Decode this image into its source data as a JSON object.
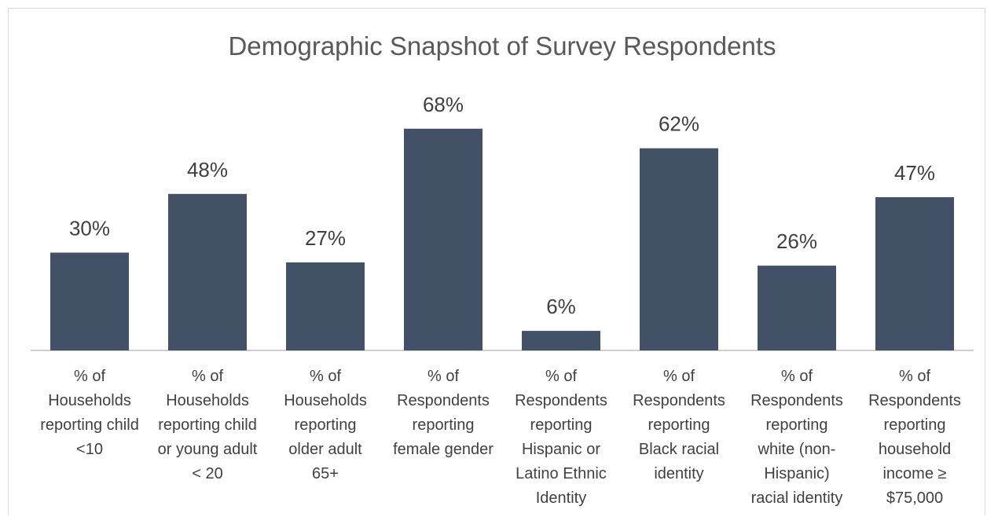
{
  "chart_data": {
    "type": "bar",
    "title": "Demographic Snapshot of Survey Respondents",
    "xlabel": "",
    "ylabel": "",
    "ylim": [
      0,
      80
    ],
    "grid": false,
    "legend": "none",
    "bar_color": "#435167",
    "categories": [
      [
        "% of",
        "Households",
        "reporting child",
        "<10"
      ],
      [
        "% of",
        "Households",
        "reporting child",
        "or young adult",
        "< 20"
      ],
      [
        "% of",
        "Households",
        "reporting",
        "older adult",
        "65+"
      ],
      [
        "% of",
        "Respondents",
        "reporting",
        "female gender"
      ],
      [
        "% of",
        "Respondents",
        "reporting",
        "Hispanic or",
        "Latino Ethnic",
        "Identity"
      ],
      [
        "% of",
        "Respondents",
        "reporting",
        "Black racial",
        "identity"
      ],
      [
        "% of",
        "Respondents",
        "reporting",
        "white (non-",
        "Hispanic)",
        "racial identity"
      ],
      [
        "% of",
        "Respondents",
        "reporting",
        "household",
        "income ≥",
        "$75,000"
      ]
    ],
    "values": [
      30,
      48,
      27,
      68,
      6,
      62,
      26,
      47
    ],
    "data_labels": [
      "30%",
      "48%",
      "27%",
      "68%",
      "6%",
      "62%",
      "26%",
      "47%"
    ]
  }
}
